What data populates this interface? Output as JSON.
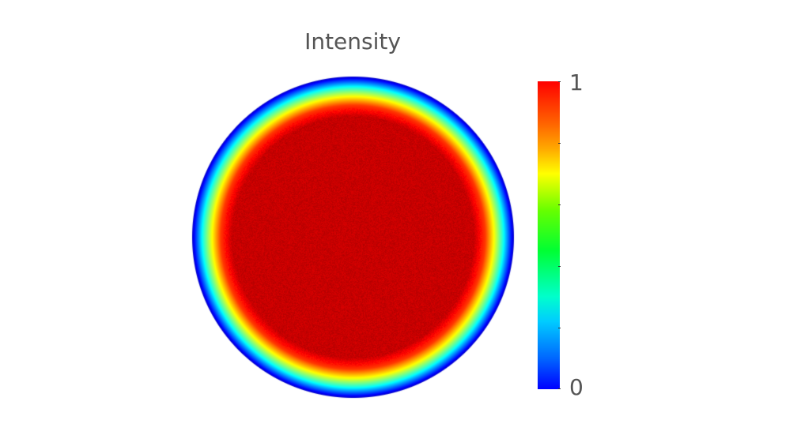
{
  "chart_data": {
    "type": "heatmap",
    "title": "Intensity",
    "shape": "circular field",
    "value_profile": {
      "center_value": 0.93,
      "rim_value": 0.05,
      "description_points": [
        {
          "r": 0.0,
          "v": 0.93
        },
        {
          "r": 0.75,
          "v": 0.93
        },
        {
          "r": 0.82,
          "v": 0.82
        },
        {
          "r": 0.88,
          "v": 0.6
        },
        {
          "r": 0.93,
          "v": 0.4
        },
        {
          "r": 0.97,
          "v": 0.2
        },
        {
          "r": 1.0,
          "v": 0.05
        }
      ]
    },
    "colorbar": {
      "min_label": "0",
      "max_label": "1",
      "range": [
        0,
        1
      ],
      "colormap": "jet"
    }
  }
}
